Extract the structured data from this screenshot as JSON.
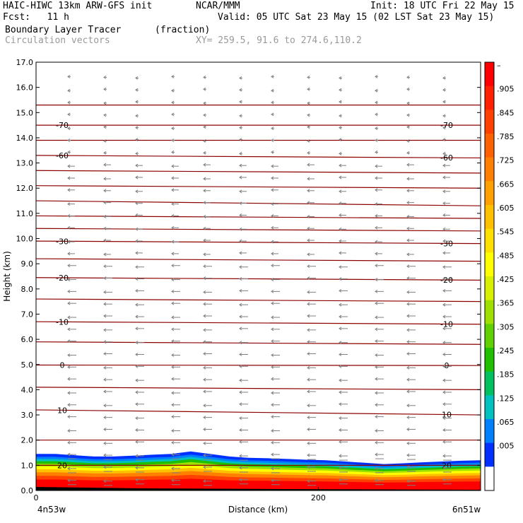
{
  "header": {
    "model": "HAIC-HIWC 13km ARW-GFS init",
    "org": "NCAR/MMM",
    "init": "Init: 18 UTC Fri 22 May 15",
    "fcst": "Fcst:   11 h",
    "valid": "Valid: 05 UTC Sat 23 May 15 (02 LST Sat 23 May 15)",
    "field": "Boundary Layer Tracer",
    "units": "(fraction)",
    "vectors": "Circulation vectors",
    "xy": "XY= 259.5, 91.6 to 274.6,110.2"
  },
  "chart_data": {
    "type": "heatmap",
    "ylabel": "Height (km)",
    "xlabel": "Distance (km)",
    "ylim": [
      0,
      17
    ],
    "xlim": [
      0,
      315
    ],
    "yticks": [
      "0.0",
      "1.0",
      "2.0",
      "3.0",
      "4.0",
      "5.0",
      "6.0",
      "7.0",
      "8.0",
      "9.0",
      "10.0",
      "11.0",
      "12.0",
      "13.0",
      "14.0",
      "15.0",
      "16.0",
      "17.0"
    ],
    "xticks": [
      {
        "value": 0,
        "label": "0"
      },
      {
        "value": 200,
        "label": "200"
      }
    ],
    "x_endpoints": {
      "left": "4n53w",
      "right": "6n51w"
    },
    "colorbar": {
      "labels": [
        "–",
        ".905",
        ".845",
        ".785",
        ".725",
        ".665",
        ".605",
        ".545",
        ".485",
        ".425",
        ".365",
        ".305",
        ".245",
        ".185",
        ".125",
        ".065",
        ".005"
      ],
      "colors": [
        "#ff0000",
        "#ff2000",
        "#ff4000",
        "#ff6000",
        "#ff8000",
        "#ffa000",
        "#ffc000",
        "#ffe000",
        "#ffff00",
        "#d8f000",
        "#a0e000",
        "#60d000",
        "#20c000",
        "#00c060",
        "#00c0c0",
        "#0080ff",
        "#0030ff",
        "#ffffff"
      ]
    },
    "isotherms": [
      {
        "label": "-70",
        "y_left": 14.5,
        "y_right": 14.5,
        "label_left": true,
        "label_right": true
      },
      {
        "label": "-60",
        "y_left": 13.3,
        "y_right": 13.2,
        "label_left": true,
        "label_right": true
      },
      {
        "label": "-30",
        "y_left": 9.9,
        "y_right": 9.8,
        "label_left": true,
        "label_right": true
      },
      {
        "label": "-20",
        "y_left": 8.45,
        "y_right": 8.35,
        "label_left": true,
        "label_right": true
      },
      {
        "label": "-10",
        "y_left": 6.7,
        "y_right": 6.6,
        "label_left": true,
        "label_right": true
      },
      {
        "label": "0",
        "y_left": 4.98,
        "y_right": 4.96,
        "label_left": true,
        "label_right": true
      },
      {
        "label": "10",
        "y_left": 3.2,
        "y_right": 3.0,
        "label_left": true,
        "label_right": true
      },
      {
        "label": "20",
        "y_left": 1.0,
        "y_right": 1.0,
        "label_left": true,
        "label_right": true
      },
      {
        "label": "",
        "y_left": 15.3,
        "y_right": 15.3
      },
      {
        "label": "",
        "y_left": 13.9,
        "y_right": 13.9
      },
      {
        "label": "",
        "y_left": 12.7,
        "y_right": 12.6
      },
      {
        "label": "",
        "y_left": 12.1,
        "y_right": 12.0
      },
      {
        "label": "",
        "y_left": 11.5,
        "y_right": 11.3
      },
      {
        "label": "",
        "y_left": 10.9,
        "y_right": 10.8
      },
      {
        "label": "",
        "y_left": 10.4,
        "y_right": 10.3
      },
      {
        "label": "",
        "y_left": 9.2,
        "y_right": 9.1
      },
      {
        "label": "",
        "y_left": 7.6,
        "y_right": 7.5
      },
      {
        "label": "",
        "y_left": 5.9,
        "y_right": 5.8
      },
      {
        "label": "",
        "y_left": 4.1,
        "y_right": 4.0
      },
      {
        "label": "",
        "y_left": 2.0,
        "y_right": 2.0
      }
    ],
    "tracer_top_km": [
      1.45,
      1.45,
      1.4,
      1.35,
      1.35,
      1.38,
      1.42,
      1.45,
      1.55,
      1.45,
      1.35,
      1.3,
      1.28,
      1.25,
      1.22,
      1.2,
      1.15,
      1.1,
      1.05,
      1.08,
      1.12,
      1.15,
      1.18,
      1.2
    ],
    "colors": {
      "frame": "#000000",
      "contour": "#8b0000",
      "vectors": "#808080"
    }
  }
}
